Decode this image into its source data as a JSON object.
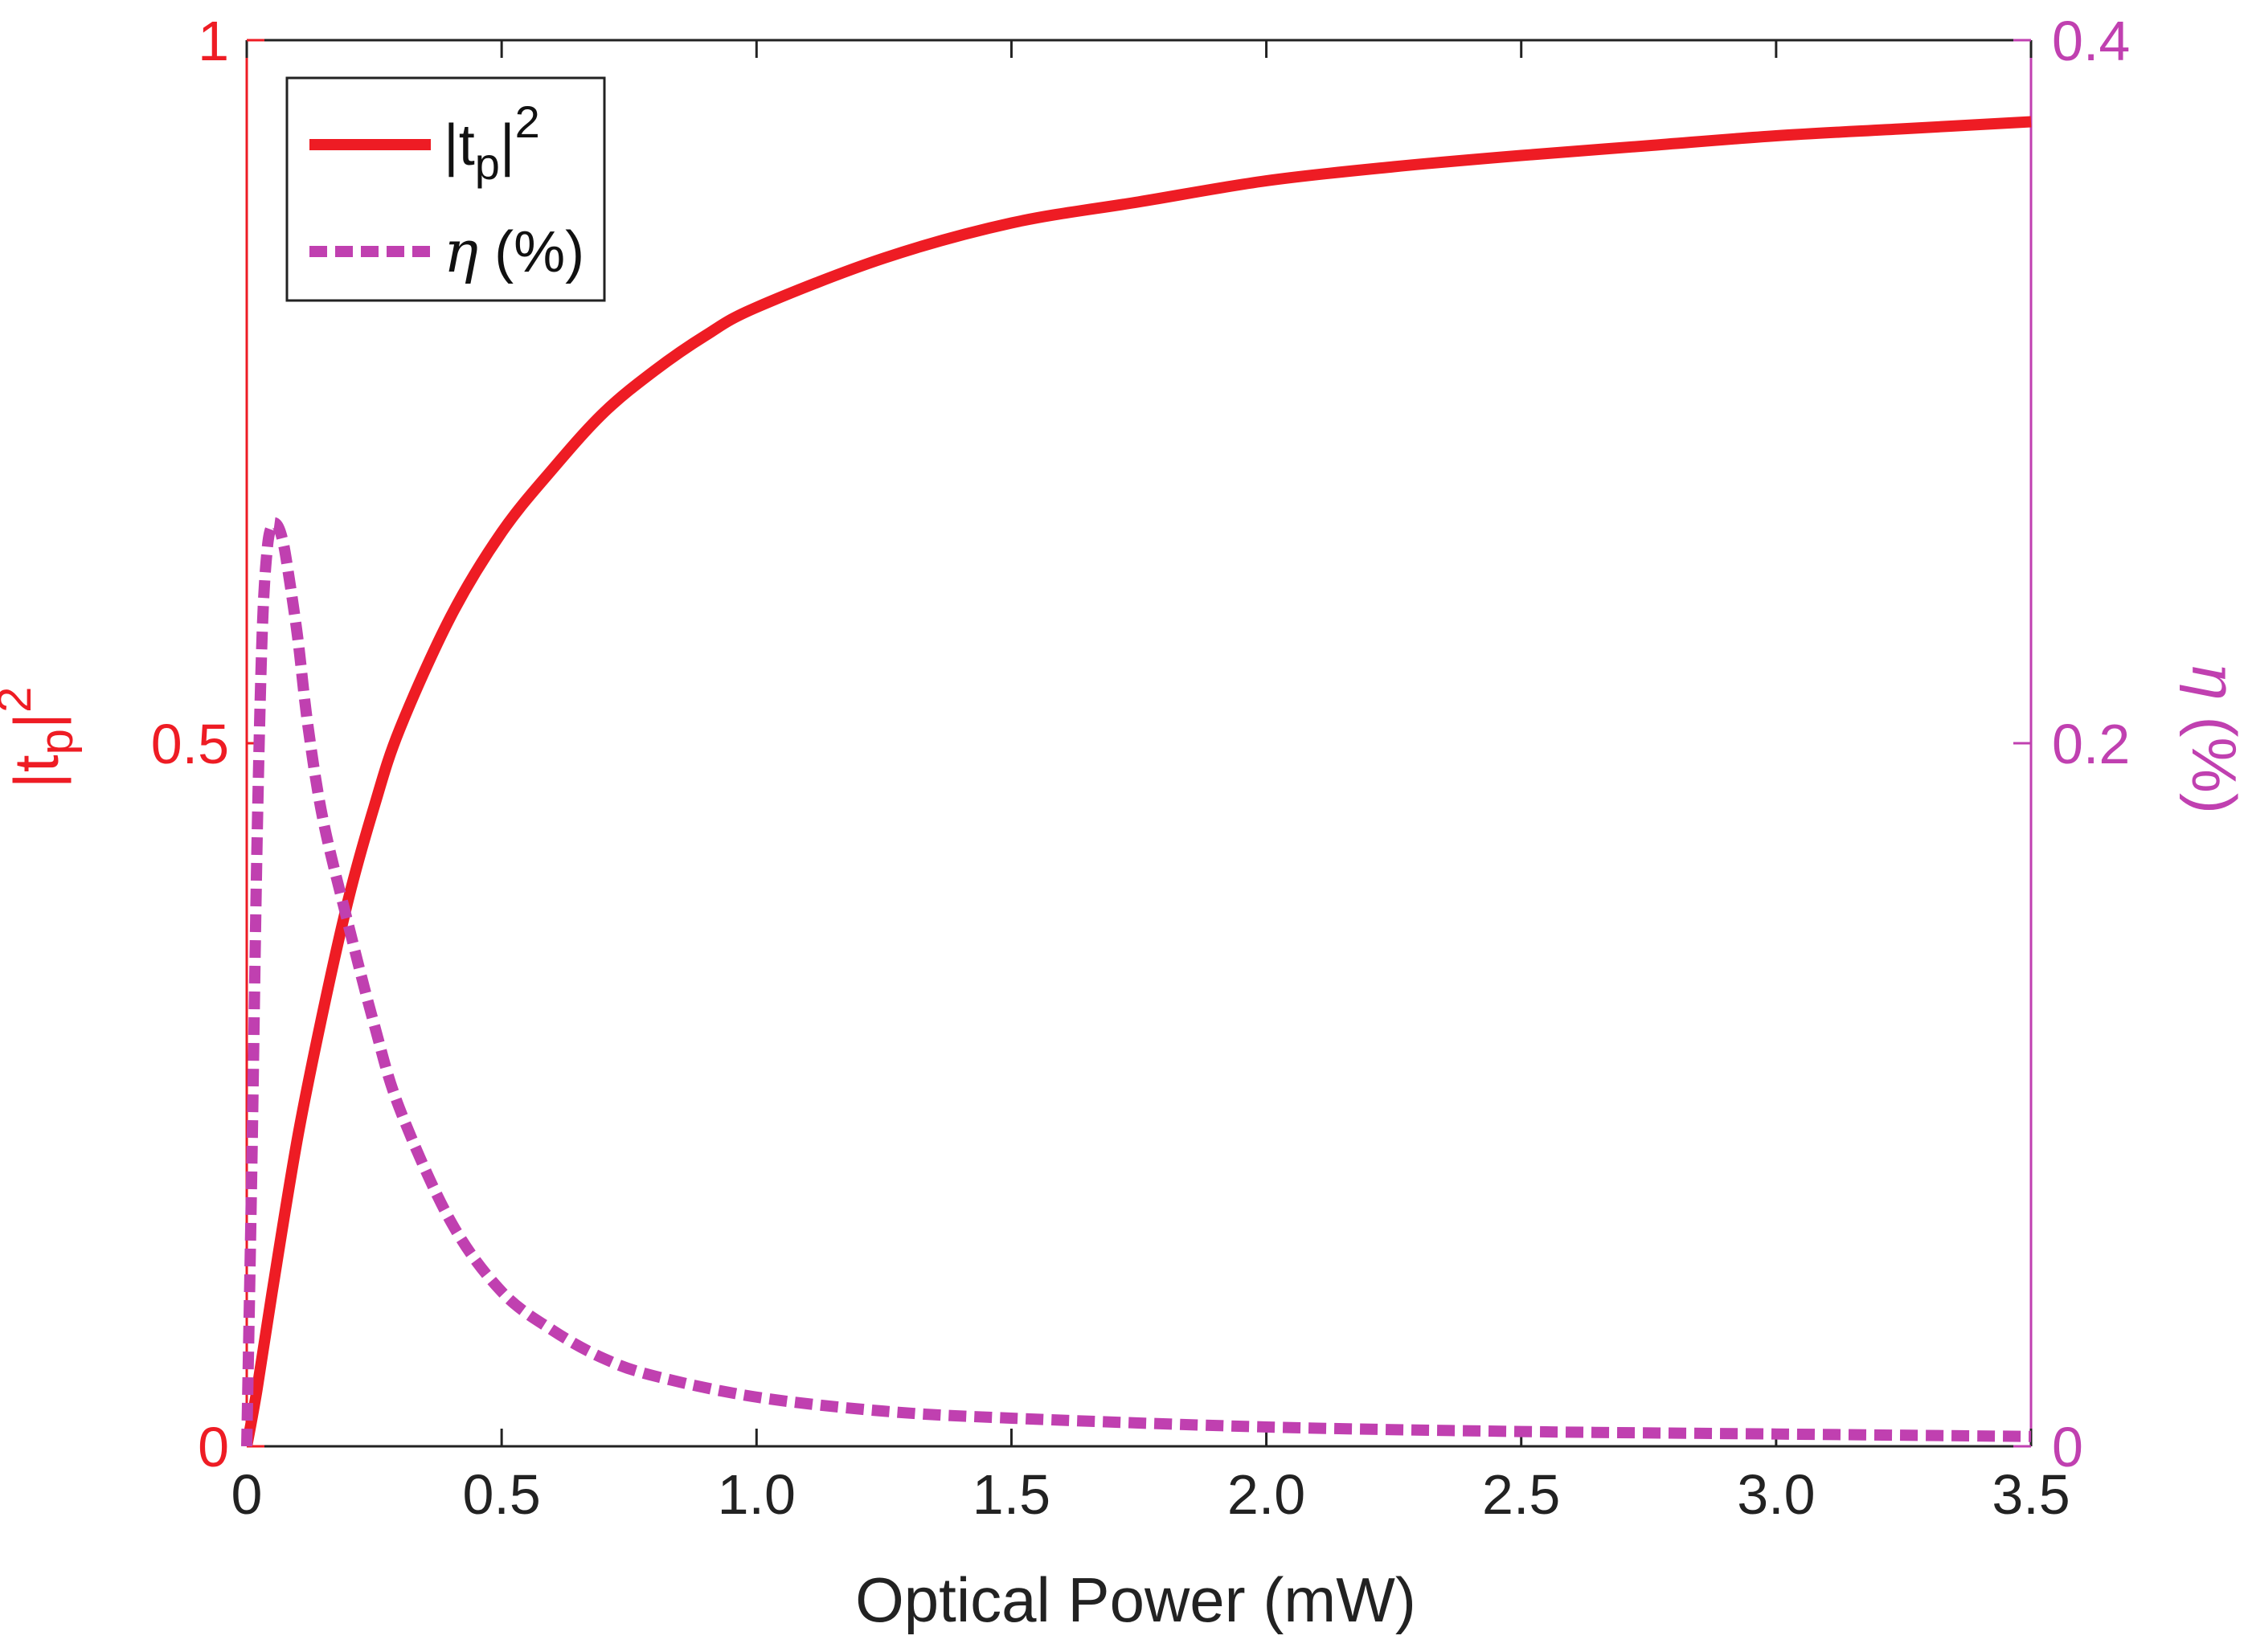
{
  "chart_data": {
    "type": "line",
    "title": "",
    "xlabel": "Optical Power (mW)",
    "xlim": [
      0,
      3.5
    ],
    "x_ticks": [
      "0",
      "0.5",
      "1.0",
      "1.5",
      "2.0",
      "2.5",
      "3.0",
      "3.5"
    ],
    "x_tick_values": [
      0,
      0.5,
      1.0,
      1.5,
      2.0,
      2.5,
      3.0,
      3.5
    ],
    "left_axis": {
      "label_main": "|t",
      "label_sub": "p",
      "label_tail": "|",
      "label_sup": "2",
      "ylim": [
        0,
        1
      ],
      "ticks": [
        "0",
        "0.5",
        "1"
      ],
      "tick_values": [
        0,
        0.5,
        1
      ],
      "color": "#ee1c24"
    },
    "right_axis": {
      "label_greek": "η",
      "label_rest": " (%)",
      "ylim": [
        0,
        0.4
      ],
      "ticks": [
        "0",
        "0.2",
        "0.4"
      ],
      "tick_values": [
        0,
        0.2,
        0.4
      ],
      "color": "#c040b0"
    },
    "legend": {
      "position": "top-left",
      "entries": [
        {
          "main": "|t",
          "sub": "p",
          "tail": "|",
          "sup": "2"
        },
        {
          "greek": "η",
          "rest": " (%)"
        }
      ]
    },
    "series": [
      {
        "name": "|tp|^2",
        "axis": "left",
        "style": "solid",
        "color": "#ee1c24",
        "x": [
          0,
          0.02,
          0.05,
          0.1,
          0.15,
          0.2,
          0.25,
          0.3,
          0.4,
          0.5,
          0.6,
          0.7,
          0.8,
          0.9,
          1.0,
          1.25,
          1.5,
          1.75,
          2.0,
          2.25,
          2.5,
          2.75,
          3.0,
          3.25,
          3.5
        ],
        "values": [
          0,
          0.04,
          0.11,
          0.22,
          0.31,
          0.39,
          0.455,
          0.51,
          0.59,
          0.65,
          0.695,
          0.735,
          0.765,
          0.79,
          0.81,
          0.845,
          0.87,
          0.885,
          0.9,
          0.91,
          0.918,
          0.925,
          0.932,
          0.937,
          0.942
        ]
      },
      {
        "name": "η (%)",
        "axis": "right",
        "style": "dashed",
        "color": "#c040b0",
        "x": [
          0,
          0.01,
          0.02,
          0.03,
          0.04,
          0.05,
          0.06,
          0.07,
          0.08,
          0.1,
          0.12,
          0.15,
          0.2,
          0.25,
          0.3,
          0.4,
          0.5,
          0.6,
          0.7,
          0.8,
          1.0,
          1.25,
          1.5,
          2.0,
          2.5,
          3.0,
          3.5
        ],
        "values": [
          0,
          0.08,
          0.17,
          0.23,
          0.255,
          0.262,
          0.262,
          0.258,
          0.25,
          0.23,
          0.205,
          0.178,
          0.148,
          0.12,
          0.096,
          0.064,
          0.044,
          0.033,
          0.025,
          0.02,
          0.014,
          0.01,
          0.008,
          0.0055,
          0.0042,
          0.0035,
          0.0028
        ]
      }
    ]
  }
}
